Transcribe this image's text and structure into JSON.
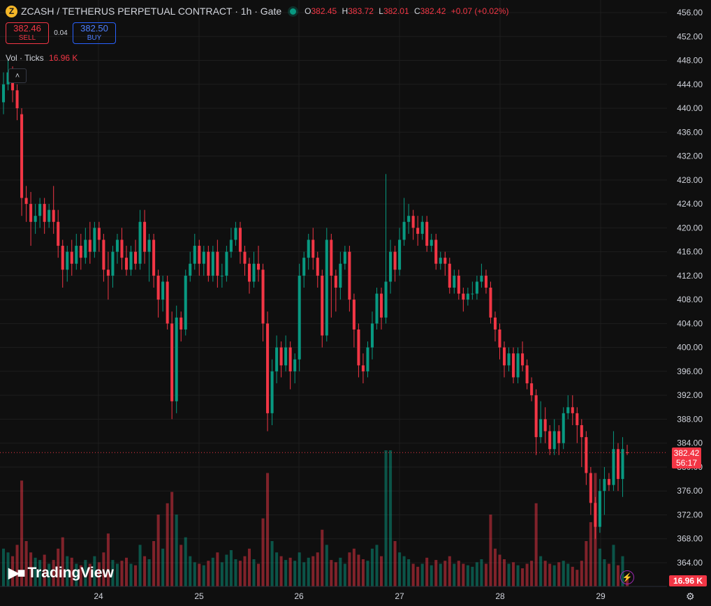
{
  "header": {
    "coin_symbol": "Z",
    "title": "ZCASH / TETHERUS PERPETUAL CONTRACT · 1h · Gate",
    "ohlc": {
      "o": "382.45",
      "h": "383.72",
      "l": "382.01",
      "c": "382.42",
      "chg": "+0.07 (+0.02%)"
    }
  },
  "trade": {
    "sell_price": "382.46",
    "sell_label": "SELL",
    "spread": "0.04",
    "buy_price": "382.50",
    "buy_label": "BUY"
  },
  "volume_legend": {
    "label": "Vol · Ticks",
    "value": "16.96 K"
  },
  "price_tag": {
    "price": "382.42",
    "countdown": "56:17"
  },
  "volume_tag": "16.96 K",
  "branding": "TradingView",
  "colors": {
    "up": "#089981",
    "down": "#f23645",
    "background": "#0f0f0f"
  },
  "chart_data": {
    "type": "candlestick",
    "timeframe": "1h",
    "y_ticks": [
      456.0,
      452.0,
      448.0,
      444.0,
      440.0,
      436.0,
      432.0,
      428.0,
      424.0,
      420.0,
      416.0,
      412.0,
      408.0,
      404.0,
      400.0,
      396.0,
      392.0,
      388.0,
      384.0,
      380.0,
      376.0,
      372.0,
      368.0,
      364.0
    ],
    "x_ticks": [
      "24",
      "25",
      "26",
      "27",
      "28",
      "29"
    ],
    "ylim": [
      361,
      458
    ],
    "grid": true,
    "candles": [
      {
        "o": 441,
        "c": 444,
        "h": 446,
        "l": 439,
        "v": 50
      },
      {
        "o": 444,
        "c": 446,
        "h": 448,
        "l": 443,
        "v": 45
      },
      {
        "o": 446,
        "c": 443,
        "h": 447,
        "l": 441,
        "v": 40
      },
      {
        "o": 443,
        "c": 440,
        "h": 444,
        "l": 438,
        "v": 55
      },
      {
        "o": 439,
        "c": 425,
        "h": 440,
        "l": 422,
        "v": 140
      },
      {
        "o": 425,
        "c": 424,
        "h": 427,
        "l": 421,
        "v": 60
      },
      {
        "o": 424,
        "c": 421,
        "h": 426,
        "l": 417,
        "v": 45
      },
      {
        "o": 421,
        "c": 422,
        "h": 424,
        "l": 419,
        "v": 38
      },
      {
        "o": 422,
        "c": 424,
        "h": 425,
        "l": 420,
        "v": 35
      },
      {
        "o": 424,
        "c": 421,
        "h": 425,
        "l": 419,
        "v": 42
      },
      {
        "o": 421,
        "c": 423,
        "h": 424,
        "l": 420,
        "v": 30
      },
      {
        "o": 423,
        "c": 421,
        "h": 427,
        "l": 419,
        "v": 35
      },
      {
        "o": 421,
        "c": 417,
        "h": 423,
        "l": 415,
        "v": 50
      },
      {
        "o": 417,
        "c": 413,
        "h": 418,
        "l": 410,
        "v": 65
      },
      {
        "o": 413,
        "c": 416,
        "h": 417,
        "l": 411,
        "v": 40
      },
      {
        "o": 416,
        "c": 414,
        "h": 418,
        "l": 412,
        "v": 38
      },
      {
        "o": 414,
        "c": 417,
        "h": 419,
        "l": 413,
        "v": 30
      },
      {
        "o": 417,
        "c": 415,
        "h": 419,
        "l": 413,
        "v": 28
      },
      {
        "o": 415,
        "c": 418,
        "h": 420,
        "l": 414,
        "v": 35
      },
      {
        "o": 418,
        "c": 416,
        "h": 421,
        "l": 414,
        "v": 30
      },
      {
        "o": 416,
        "c": 420,
        "h": 421,
        "l": 415,
        "v": 40
      },
      {
        "o": 420,
        "c": 418,
        "h": 421,
        "l": 416,
        "v": 32
      },
      {
        "o": 418,
        "c": 413,
        "h": 419,
        "l": 411,
        "v": 45
      },
      {
        "o": 413,
        "c": 412,
        "h": 416,
        "l": 408,
        "v": 70
      },
      {
        "o": 412,
        "c": 416,
        "h": 417,
        "l": 410,
        "v": 35
      },
      {
        "o": 416,
        "c": 418,
        "h": 419,
        "l": 414,
        "v": 30
      },
      {
        "o": 418,
        "c": 415,
        "h": 420,
        "l": 413,
        "v": 34
      },
      {
        "o": 415,
        "c": 413,
        "h": 417,
        "l": 412,
        "v": 38
      },
      {
        "o": 413,
        "c": 416,
        "h": 417,
        "l": 412,
        "v": 30
      },
      {
        "o": 416,
        "c": 414,
        "h": 418,
        "l": 413,
        "v": 28
      },
      {
        "o": 414,
        "c": 421,
        "h": 423,
        "l": 413,
        "v": 55
      },
      {
        "o": 421,
        "c": 416,
        "h": 423,
        "l": 414,
        "v": 40
      },
      {
        "o": 416,
        "c": 418,
        "h": 419,
        "l": 411,
        "v": 36
      },
      {
        "o": 418,
        "c": 412,
        "h": 419,
        "l": 410,
        "v": 60
      },
      {
        "o": 412,
        "c": 408,
        "h": 413,
        "l": 405,
        "v": 95
      },
      {
        "o": 408,
        "c": 411,
        "h": 412,
        "l": 406,
        "v": 50
      },
      {
        "o": 411,
        "c": 404,
        "h": 412,
        "l": 403,
        "v": 110
      },
      {
        "o": 404,
        "c": 391,
        "h": 406,
        "l": 388,
        "v": 125
      },
      {
        "o": 391,
        "c": 405,
        "h": 407,
        "l": 389,
        "v": 95
      },
      {
        "o": 405,
        "c": 403,
        "h": 406,
        "l": 401,
        "v": 55
      },
      {
        "o": 403,
        "c": 412,
        "h": 413,
        "l": 402,
        "v": 65
      },
      {
        "o": 412,
        "c": 414,
        "h": 416,
        "l": 411,
        "v": 40
      },
      {
        "o": 414,
        "c": 417,
        "h": 419,
        "l": 413,
        "v": 32
      },
      {
        "o": 417,
        "c": 414,
        "h": 418,
        "l": 412,
        "v": 30
      },
      {
        "o": 414,
        "c": 416,
        "h": 417,
        "l": 412,
        "v": 28
      },
      {
        "o": 416,
        "c": 412,
        "h": 417,
        "l": 411,
        "v": 34
      },
      {
        "o": 412,
        "c": 416,
        "h": 417,
        "l": 411,
        "v": 38
      },
      {
        "o": 416,
        "c": 412,
        "h": 418,
        "l": 410,
        "v": 45
      },
      {
        "o": 412,
        "c": 412,
        "h": 414,
        "l": 410,
        "v": 32
      },
      {
        "o": 412,
        "c": 416,
        "h": 417,
        "l": 411,
        "v": 42
      },
      {
        "o": 416,
        "c": 418,
        "h": 420,
        "l": 415,
        "v": 48
      },
      {
        "o": 418,
        "c": 420,
        "h": 421,
        "l": 417,
        "v": 36
      },
      {
        "o": 420,
        "c": 416,
        "h": 421,
        "l": 414,
        "v": 34
      },
      {
        "o": 416,
        "c": 414,
        "h": 417,
        "l": 412,
        "v": 40
      },
      {
        "o": 414,
        "c": 411,
        "h": 415,
        "l": 409,
        "v": 50
      },
      {
        "o": 411,
        "c": 414,
        "h": 416,
        "l": 410,
        "v": 36
      },
      {
        "o": 414,
        "c": 413,
        "h": 417,
        "l": 411,
        "v": 30
      },
      {
        "o": 413,
        "c": 404,
        "h": 414,
        "l": 401,
        "v": 90
      },
      {
        "o": 404,
        "c": 389,
        "h": 406,
        "l": 386,
        "v": 150
      },
      {
        "o": 389,
        "c": 396,
        "h": 398,
        "l": 387,
        "v": 60
      },
      {
        "o": 396,
        "c": 400,
        "h": 402,
        "l": 394,
        "v": 45
      },
      {
        "o": 400,
        "c": 397,
        "h": 401,
        "l": 395,
        "v": 40
      },
      {
        "o": 397,
        "c": 400,
        "h": 402,
        "l": 396,
        "v": 35
      },
      {
        "o": 400,
        "c": 396,
        "h": 401,
        "l": 393,
        "v": 38
      },
      {
        "o": 396,
        "c": 398,
        "h": 399,
        "l": 394,
        "v": 34
      },
      {
        "o": 398,
        "c": 412,
        "h": 414,
        "l": 396,
        "v": 45
      },
      {
        "o": 412,
        "c": 415,
        "h": 416,
        "l": 410,
        "v": 32
      },
      {
        "o": 415,
        "c": 418,
        "h": 419,
        "l": 413,
        "v": 38
      },
      {
        "o": 418,
        "c": 415,
        "h": 420,
        "l": 413,
        "v": 40
      },
      {
        "o": 415,
        "c": 412,
        "h": 416,
        "l": 410,
        "v": 45
      },
      {
        "o": 412,
        "c": 402,
        "h": 413,
        "l": 400,
        "v": 75
      },
      {
        "o": 402,
        "c": 418,
        "h": 420,
        "l": 401,
        "v": 55
      },
      {
        "o": 418,
        "c": 412,
        "h": 419,
        "l": 405,
        "v": 35
      },
      {
        "o": 412,
        "c": 410,
        "h": 413,
        "l": 406,
        "v": 32
      },
      {
        "o": 410,
        "c": 414,
        "h": 416,
        "l": 408,
        "v": 38
      },
      {
        "o": 414,
        "c": 416,
        "h": 417,
        "l": 413,
        "v": 30
      },
      {
        "o": 416,
        "c": 408,
        "h": 417,
        "l": 406,
        "v": 45
      },
      {
        "o": 408,
        "c": 403,
        "h": 409,
        "l": 400,
        "v": 50
      },
      {
        "o": 403,
        "c": 397,
        "h": 404,
        "l": 395,
        "v": 42
      },
      {
        "o": 397,
        "c": 396,
        "h": 399,
        "l": 394,
        "v": 36
      },
      {
        "o": 396,
        "c": 400,
        "h": 401,
        "l": 395,
        "v": 34
      },
      {
        "o": 400,
        "c": 404,
        "h": 406,
        "l": 398,
        "v": 50
      },
      {
        "o": 404,
        "c": 409,
        "h": 410,
        "l": 403,
        "v": 55
      },
      {
        "o": 409,
        "c": 405,
        "h": 410,
        "l": 403,
        "v": 40
      },
      {
        "o": 405,
        "c": 411,
        "h": 429,
        "l": 404,
        "v": 180
      },
      {
        "o": 411,
        "c": 416,
        "h": 418,
        "l": 409,
        "v": 180
      },
      {
        "o": 416,
        "c": 413,
        "h": 417,
        "l": 411,
        "v": 60
      },
      {
        "o": 413,
        "c": 418,
        "h": 420,
        "l": 412,
        "v": 45
      },
      {
        "o": 418,
        "c": 421,
        "h": 425,
        "l": 417,
        "v": 40
      },
      {
        "o": 421,
        "c": 422,
        "h": 424,
        "l": 419,
        "v": 36
      },
      {
        "o": 422,
        "c": 420,
        "h": 423,
        "l": 418,
        "v": 30
      },
      {
        "o": 420,
        "c": 419,
        "h": 422,
        "l": 417,
        "v": 26
      },
      {
        "o": 419,
        "c": 421,
        "h": 422,
        "l": 418,
        "v": 30
      },
      {
        "o": 421,
        "c": 417,
        "h": 422,
        "l": 416,
        "v": 38
      },
      {
        "o": 417,
        "c": 418,
        "h": 419,
        "l": 416,
        "v": 28
      },
      {
        "o": 418,
        "c": 414,
        "h": 419,
        "l": 413,
        "v": 35
      },
      {
        "o": 414,
        "c": 415,
        "h": 416,
        "l": 413,
        "v": 30
      },
      {
        "o": 415,
        "c": 414,
        "h": 416,
        "l": 412,
        "v": 34
      },
      {
        "o": 414,
        "c": 410,
        "h": 415,
        "l": 409,
        "v": 40
      },
      {
        "o": 410,
        "c": 412,
        "h": 413,
        "l": 409,
        "v": 30
      },
      {
        "o": 412,
        "c": 409,
        "h": 413,
        "l": 408,
        "v": 34
      },
      {
        "o": 409,
        "c": 408,
        "h": 410,
        "l": 406,
        "v": 30
      },
      {
        "o": 408,
        "c": 409,
        "h": 410,
        "l": 407,
        "v": 28
      },
      {
        "o": 409,
        "c": 409,
        "h": 411,
        "l": 408,
        "v": 26
      },
      {
        "o": 409,
        "c": 411,
        "h": 412,
        "l": 408,
        "v": 32
      },
      {
        "o": 411,
        "c": 412,
        "h": 414,
        "l": 410,
        "v": 36
      },
      {
        "o": 412,
        "c": 410,
        "h": 413,
        "l": 409,
        "v": 30
      },
      {
        "o": 410,
        "c": 405,
        "h": 411,
        "l": 404,
        "v": 95
      },
      {
        "o": 405,
        "c": 403,
        "h": 406,
        "l": 401,
        "v": 50
      },
      {
        "o": 403,
        "c": 400,
        "h": 404,
        "l": 398,
        "v": 42
      },
      {
        "o": 400,
        "c": 397,
        "h": 401,
        "l": 395,
        "v": 36
      },
      {
        "o": 397,
        "c": 399,
        "h": 400,
        "l": 396,
        "v": 30
      },
      {
        "o": 399,
        "c": 395,
        "h": 400,
        "l": 394,
        "v": 32
      },
      {
        "o": 395,
        "c": 399,
        "h": 400,
        "l": 394,
        "v": 28
      },
      {
        "o": 399,
        "c": 397,
        "h": 401,
        "l": 396,
        "v": 24
      },
      {
        "o": 397,
        "c": 394,
        "h": 398,
        "l": 393,
        "v": 30
      },
      {
        "o": 394,
        "c": 392,
        "h": 395,
        "l": 391,
        "v": 34
      },
      {
        "o": 392,
        "c": 385,
        "h": 393,
        "l": 382,
        "v": 110
      },
      {
        "o": 385,
        "c": 388,
        "h": 391,
        "l": 384,
        "v": 40
      },
      {
        "o": 388,
        "c": 386,
        "h": 390,
        "l": 384,
        "v": 34
      },
      {
        "o": 386,
        "c": 383,
        "h": 387,
        "l": 382,
        "v": 30
      },
      {
        "o": 383,
        "c": 386,
        "h": 388,
        "l": 382,
        "v": 28
      },
      {
        "o": 386,
        "c": 384,
        "h": 387,
        "l": 382,
        "v": 32
      },
      {
        "o": 384,
        "c": 389,
        "h": 390,
        "l": 383,
        "v": 34
      },
      {
        "o": 389,
        "c": 390,
        "h": 392,
        "l": 388,
        "v": 30
      },
      {
        "o": 390,
        "c": 389,
        "h": 392,
        "l": 387,
        "v": 26
      },
      {
        "o": 389,
        "c": 387,
        "h": 390,
        "l": 384,
        "v": 22
      },
      {
        "o": 387,
        "c": 385,
        "h": 388,
        "l": 380,
        "v": 34
      },
      {
        "o": 385,
        "c": 379,
        "h": 386,
        "l": 377,
        "v": 60
      },
      {
        "o": 379,
        "c": 374,
        "h": 380,
        "l": 372,
        "v": 85
      },
      {
        "o": 374,
        "c": 370,
        "h": 375,
        "l": 368,
        "v": 150
      },
      {
        "o": 370,
        "c": 376,
        "h": 378,
        "l": 369,
        "v": 50
      },
      {
        "o": 376,
        "c": 378,
        "h": 380,
        "l": 372,
        "v": 36
      },
      {
        "o": 378,
        "c": 377,
        "h": 379,
        "l": 376,
        "v": 30
      },
      {
        "o": 377,
        "c": 383,
        "h": 386,
        "l": 376,
        "v": 55
      },
      {
        "o": 383,
        "c": 378,
        "h": 384,
        "l": 376,
        "v": 28
      },
      {
        "o": 378,
        "c": 383,
        "h": 385,
        "l": 375,
        "v": 40
      },
      {
        "o": 382.45,
        "c": 382.42,
        "h": 383.72,
        "l": 382.01,
        "v": 12
      }
    ]
  }
}
